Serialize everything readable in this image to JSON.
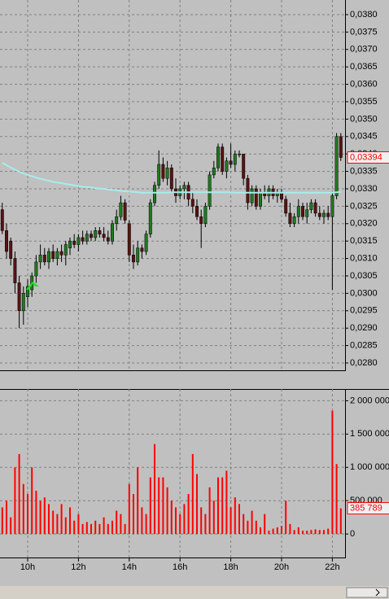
{
  "chart_data": [
    {
      "type": "candlestick",
      "ylim": [
        0.02779,
        0.03842
      ],
      "yticks": [
        {
          "value": 0.028,
          "label": "0,0280"
        },
        {
          "value": 0.0285,
          "label": "0,0285"
        },
        {
          "value": 0.029,
          "label": "0,0290"
        },
        {
          "value": 0.0295,
          "label": "0,0295"
        },
        {
          "value": 0.03,
          "label": "0,0300"
        },
        {
          "value": 0.0305,
          "label": "0,0305"
        },
        {
          "value": 0.031,
          "label": "0,0310"
        },
        {
          "value": 0.0315,
          "label": "0,0315"
        },
        {
          "value": 0.032,
          "label": "0,0320"
        },
        {
          "value": 0.0325,
          "label": "0,0325"
        },
        {
          "value": 0.033,
          "label": "0,0330"
        },
        {
          "value": 0.0335,
          "label": "0,0335"
        },
        {
          "value": 0.034,
          "label": "0,0340"
        },
        {
          "value": 0.0345,
          "label": "0,0345"
        },
        {
          "value": 0.035,
          "label": "0,0350"
        },
        {
          "value": 0.0355,
          "label": "0,0355"
        },
        {
          "value": 0.036,
          "label": "0,0360"
        },
        {
          "value": 0.0365,
          "label": "0,0365"
        },
        {
          "value": 0.037,
          "label": "0,0370"
        },
        {
          "value": 0.0375,
          "label": "0,0375"
        },
        {
          "value": 0.038,
          "label": "0,0380"
        }
      ],
      "grid": true,
      "up_color": "#1f7a1f",
      "down_color": "#5a1212",
      "ma_color": "#a8ecec",
      "last_label": "0,03394",
      "open": [
        0.0324,
        0.0318,
        0.0315,
        0.031,
        0.0303,
        0.0295,
        0.0299,
        0.0301,
        0.0305,
        0.0309,
        0.0311,
        0.0309,
        0.0312,
        0.031,
        0.0312,
        0.0311,
        0.0313,
        0.0315,
        0.0314,
        0.0316,
        0.0315,
        0.0317,
        0.0316,
        0.0318,
        0.0317,
        0.0316,
        0.0315,
        0.032,
        0.0322,
        0.0326,
        0.032,
        0.0311,
        0.0309,
        0.0313,
        0.0312,
        0.0317,
        0.0326,
        0.0331,
        0.0337,
        0.0333,
        0.0336,
        0.033,
        0.0328,
        0.033,
        0.0331,
        0.0327,
        0.0325,
        0.0322,
        0.032,
        0.0325,
        0.0334,
        0.0336,
        0.0342,
        0.0335,
        0.0338,
        0.0337,
        0.034,
        0.034,
        0.0333,
        0.0326,
        0.033,
        0.0325,
        0.0329,
        0.0328,
        0.033,
        0.0328,
        0.0329,
        0.0327,
        0.0323,
        0.032,
        0.0322,
        0.0325,
        0.0322,
        0.0324,
        0.0326,
        0.0323,
        0.0322,
        0.0323,
        0.0322,
        0.0328,
        0.0345
      ],
      "high": [
        0.0326,
        0.032,
        0.0316,
        0.0312,
        0.0305,
        0.0302,
        0.0304,
        0.0306,
        0.0311,
        0.0314,
        0.0313,
        0.0313,
        0.0314,
        0.0313,
        0.0314,
        0.0315,
        0.0316,
        0.0317,
        0.0317,
        0.0318,
        0.0318,
        0.0318,
        0.0319,
        0.0319,
        0.0319,
        0.0318,
        0.0321,
        0.0324,
        0.0328,
        0.0327,
        0.0321,
        0.0314,
        0.0315,
        0.0314,
        0.0318,
        0.0327,
        0.0332,
        0.0341,
        0.0339,
        0.0338,
        0.0337,
        0.0333,
        0.0331,
        0.0332,
        0.0332,
        0.0329,
        0.0327,
        0.0324,
        0.0326,
        0.0335,
        0.0338,
        0.0343,
        0.0343,
        0.0339,
        0.0343,
        0.0341,
        0.0341,
        0.034,
        0.0334,
        0.0331,
        0.0331,
        0.033,
        0.0331,
        0.0331,
        0.0331,
        0.033,
        0.033,
        0.0328,
        0.0326,
        0.0323,
        0.0327,
        0.0326,
        0.0326,
        0.0327,
        0.0327,
        0.0325,
        0.0324,
        0.0325,
        0.0329,
        0.0346,
        0.0346
      ],
      "low": [
        0.0317,
        0.031,
        0.0308,
        0.03,
        0.029,
        0.0291,
        0.0296,
        0.0299,
        0.0303,
        0.0307,
        0.0308,
        0.0307,
        0.0309,
        0.0308,
        0.0309,
        0.0308,
        0.0311,
        0.0313,
        0.0312,
        0.0314,
        0.0314,
        0.0315,
        0.0315,
        0.0316,
        0.0315,
        0.0314,
        0.0314,
        0.0318,
        0.0321,
        0.032,
        0.0309,
        0.0307,
        0.0308,
        0.031,
        0.0311,
        0.0316,
        0.0325,
        0.033,
        0.0332,
        0.0331,
        0.0329,
        0.0326,
        0.0327,
        0.0327,
        0.0325,
        0.0323,
        0.0321,
        0.0313,
        0.0319,
        0.0324,
        0.0333,
        0.0335,
        0.0334,
        0.0333,
        0.0336,
        0.0335,
        0.0339,
        0.0331,
        0.0324,
        0.0325,
        0.0324,
        0.0324,
        0.0327,
        0.0326,
        0.0327,
        0.0326,
        0.0326,
        0.0322,
        0.0319,
        0.0319,
        0.032,
        0.0321,
        0.032,
        0.0323,
        0.0322,
        0.0321,
        0.032,
        0.0321,
        0.0301,
        0.0327,
        0.0338
      ],
      "close": [
        0.0318,
        0.0312,
        0.031,
        0.0303,
        0.0295,
        0.03,
        0.0302,
        0.0305,
        0.0309,
        0.0311,
        0.0309,
        0.0312,
        0.031,
        0.0312,
        0.0311,
        0.0314,
        0.0315,
        0.0314,
        0.0316,
        0.0315,
        0.0317,
        0.0316,
        0.0318,
        0.0317,
        0.0316,
        0.0315,
        0.032,
        0.0322,
        0.0326,
        0.0321,
        0.0311,
        0.0309,
        0.0313,
        0.0312,
        0.0317,
        0.0326,
        0.0331,
        0.0337,
        0.0333,
        0.0336,
        0.033,
        0.0328,
        0.033,
        0.0331,
        0.0327,
        0.0325,
        0.0322,
        0.032,
        0.0325,
        0.0334,
        0.0336,
        0.0342,
        0.0335,
        0.0338,
        0.0337,
        0.034,
        0.034,
        0.0333,
        0.0326,
        0.033,
        0.0325,
        0.0329,
        0.0328,
        0.033,
        0.0328,
        0.0329,
        0.0327,
        0.0323,
        0.032,
        0.0322,
        0.0325,
        0.0322,
        0.0324,
        0.0326,
        0.0323,
        0.0322,
        0.0323,
        0.0322,
        0.0328,
        0.0345,
        0.0339
      ],
      "ma": [
        0.03375,
        0.03368,
        0.03361,
        0.03355,
        0.03349,
        0.03344,
        0.0334,
        0.03336,
        0.03332,
        0.03329,
        0.03326,
        0.03323,
        0.0332,
        0.03318,
        0.03316,
        0.03314,
        0.03312,
        0.0331,
        0.03308,
        0.03306,
        0.03305,
        0.03304,
        0.03302,
        0.03301,
        0.033,
        0.03298,
        0.03297,
        0.03296,
        0.03294,
        0.03293,
        0.03292,
        0.03291,
        0.0329,
        0.03289,
        0.03289,
        0.03289,
        0.03289,
        0.03289,
        0.03289,
        0.03289,
        0.0329,
        0.0329,
        0.0329,
        0.0329,
        0.0329,
        0.0329,
        0.0329,
        0.0329,
        0.0329,
        0.0329,
        0.0329,
        0.0329,
        0.0329,
        0.0329,
        0.0329,
        0.03289,
        0.03289,
        0.03289,
        0.03289,
        0.03289,
        0.03289,
        0.03289,
        0.03289,
        0.03289,
        0.03289,
        0.03289,
        0.03289,
        0.03289,
        0.03289,
        0.03289,
        0.03289,
        0.03289,
        0.03289,
        0.03289,
        0.03289,
        0.03289,
        0.03289,
        0.03289,
        0.03289,
        0.0329,
        0.03291
      ]
    },
    {
      "type": "bar",
      "color": "#ff0000",
      "ylim": [
        -364800,
        2176000
      ],
      "yticks": [
        {
          "value": 0,
          "label": "0"
        },
        {
          "value": 500000,
          "label": "500 000"
        },
        {
          "value": 1000000,
          "label": "1 000 000"
        },
        {
          "value": 1500000,
          "label": "1 500 000"
        },
        {
          "value": 2000000,
          "label": "2 000 000"
        }
      ],
      "last_label": "385 789",
      "categories": [
        null,
        null,
        null,
        null,
        null,
        null,
        "10h",
        null,
        null,
        null,
        null,
        null,
        null,
        null,
        null,
        null,
        null,
        null,
        "12h",
        null,
        null,
        null,
        null,
        null,
        null,
        null,
        null,
        null,
        null,
        null,
        "14h",
        null,
        null,
        null,
        null,
        null,
        null,
        null,
        null,
        null,
        null,
        null,
        "16h",
        null,
        null,
        null,
        null,
        null,
        null,
        null,
        null,
        null,
        null,
        null,
        "18h",
        null,
        null,
        null,
        null,
        null,
        null,
        null,
        null,
        null,
        null,
        null,
        "20h",
        null,
        null,
        null,
        null,
        null,
        null,
        null,
        null,
        null,
        null,
        null,
        "22h",
        null,
        null
      ],
      "values": [
        400000,
        500000,
        250000,
        1000000,
        1200000,
        750000,
        600000,
        1000000,
        650000,
        500000,
        550000,
        450000,
        350000,
        300000,
        450000,
        250000,
        400000,
        200000,
        300000,
        150000,
        180000,
        150000,
        200000,
        150000,
        250000,
        150000,
        200000,
        350000,
        300000,
        150000,
        750000,
        600000,
        1000000,
        400000,
        300000,
        850000,
        1350000,
        850000,
        850000,
        700000,
        500000,
        400000,
        300000,
        450000,
        600000,
        1200000,
        900000,
        400000,
        300000,
        700000,
        500000,
        850000,
        850000,
        950000,
        400000,
        550000,
        450000,
        300000,
        200000,
        350000,
        200000,
        100000,
        300000,
        50000,
        80000,
        100000,
        120000,
        500000,
        150000,
        60000,
        100000,
        50000,
        50000,
        60000,
        70000,
        60000,
        60000,
        80000,
        1850000,
        1050000,
        385789
      ]
    }
  ]
}
